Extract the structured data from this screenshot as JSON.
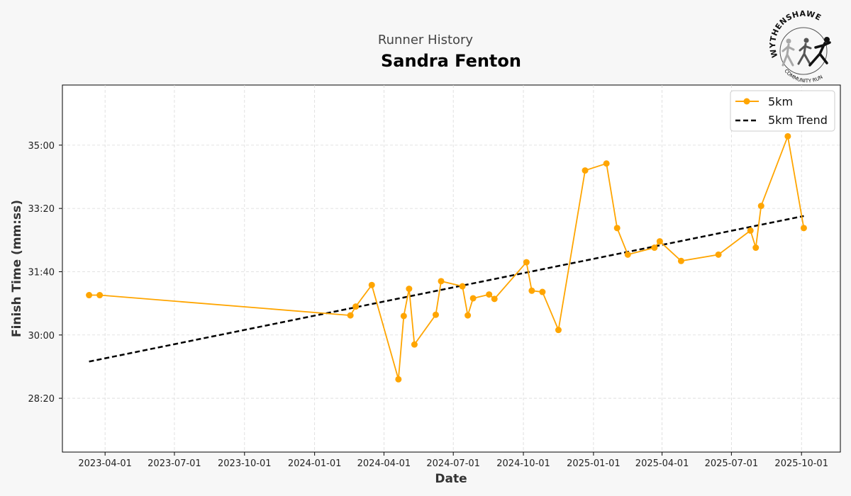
{
  "header": {
    "supertitle": "Runner History",
    "title": "Sandra Fenton"
  },
  "logo": {
    "top_text": "WYTHENSHAWE",
    "bottom_text": "COMMUNITY RUN"
  },
  "chart_data": {
    "type": "line",
    "xlabel": "Date",
    "ylabel": "Finish Time (mm:ss)",
    "x_ticks": [
      "2023-04-01",
      "2023-07-01",
      "2023-10-01",
      "2024-01-01",
      "2024-04-01",
      "2024-07-01",
      "2024-10-01",
      "2025-01-01",
      "2025-04-01",
      "2025-07-01",
      "2025-10-01"
    ],
    "y_ticks": [
      "28:20",
      "30:00",
      "31:40",
      "33:20",
      "35:00"
    ],
    "y_unit": "seconds",
    "ylim": [
      1615,
      2195
    ],
    "xlim": [
      "2023-02-04",
      "2025-11-21"
    ],
    "grid": true,
    "legend_position": "top-right",
    "series": [
      {
        "name": "5km",
        "color": "#FFA500",
        "style": "line-markers",
        "x": [
          "2023-03-11",
          "2023-03-25",
          "2024-02-17",
          "2024-02-24",
          "2024-03-16",
          "2024-04-20",
          "2024-04-27",
          "2024-05-04",
          "2024-05-11",
          "2024-06-08",
          "2024-06-15",
          "2024-07-13",
          "2024-07-20",
          "2024-07-27",
          "2024-08-17",
          "2024-08-24",
          "2024-10-05",
          "2024-10-12",
          "2024-10-26",
          "2024-11-16",
          "2024-12-21",
          "2025-01-18",
          "2025-02-01",
          "2025-02-15",
          "2025-03-22",
          "2025-03-29",
          "2025-04-26",
          "2025-06-14",
          "2025-07-26",
          "2025-08-02",
          "2025-08-09",
          "2025-09-13",
          "2025-10-04"
        ],
        "y": [
          1863,
          1863,
          1831,
          1845,
          1879,
          1730,
          1830,
          1873,
          1785,
          1832,
          1885,
          1877,
          1831,
          1858,
          1864,
          1857,
          1915,
          1870,
          1868,
          1808,
          2060,
          2071,
          1969,
          1927,
          1938,
          1948,
          1917,
          1927,
          1965,
          1938,
          2004,
          2114,
          1969
        ]
      },
      {
        "name": "5km Trend",
        "color": "#000000",
        "style": "dashed",
        "x": [
          "2023-03-11",
          "2025-10-04"
        ],
        "y": [
          1758,
          1988
        ]
      }
    ]
  }
}
